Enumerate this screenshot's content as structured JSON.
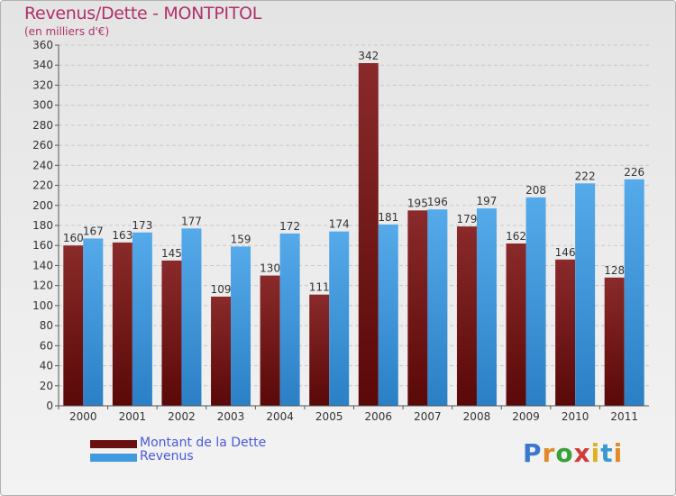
{
  "chart_data": {
    "type": "bar",
    "title": "Revenus/Dette - MONTPITOL",
    "subtitle": "(en milliers d'€)",
    "xlabel": "",
    "ylabel": "",
    "ylim": [
      0,
      360
    ],
    "yticks": [
      0,
      20,
      40,
      60,
      80,
      100,
      120,
      140,
      160,
      180,
      200,
      220,
      240,
      260,
      280,
      300,
      320,
      340,
      360
    ],
    "grid": true,
    "legend_position": "bottom-left",
    "categories": [
      "2000",
      "2001",
      "2002",
      "2003",
      "2004",
      "2005",
      "2006",
      "2007",
      "2008",
      "2009",
      "2010",
      "2011"
    ],
    "series": [
      {
        "name": "Montant de la Dette",
        "color": "#7a1f1f",
        "values": [
          160,
          163,
          145,
          109,
          130,
          111,
          342,
          195,
          179,
          162,
          146,
          128
        ]
      },
      {
        "name": "Revenus",
        "color": "#3f9ae0",
        "values": [
          167,
          173,
          177,
          159,
          172,
          174,
          181,
          196,
          197,
          208,
          222,
          226
        ]
      }
    ]
  },
  "brand": {
    "letters": [
      "P",
      "r",
      "o",
      "x",
      "i",
      "t",
      "i"
    ],
    "colors": [
      "#3a78d0",
      "#e08a2a",
      "#3aa03a",
      "#d03a3a",
      "#e0b020",
      "#3a9ad0",
      "#e08a2a"
    ]
  }
}
